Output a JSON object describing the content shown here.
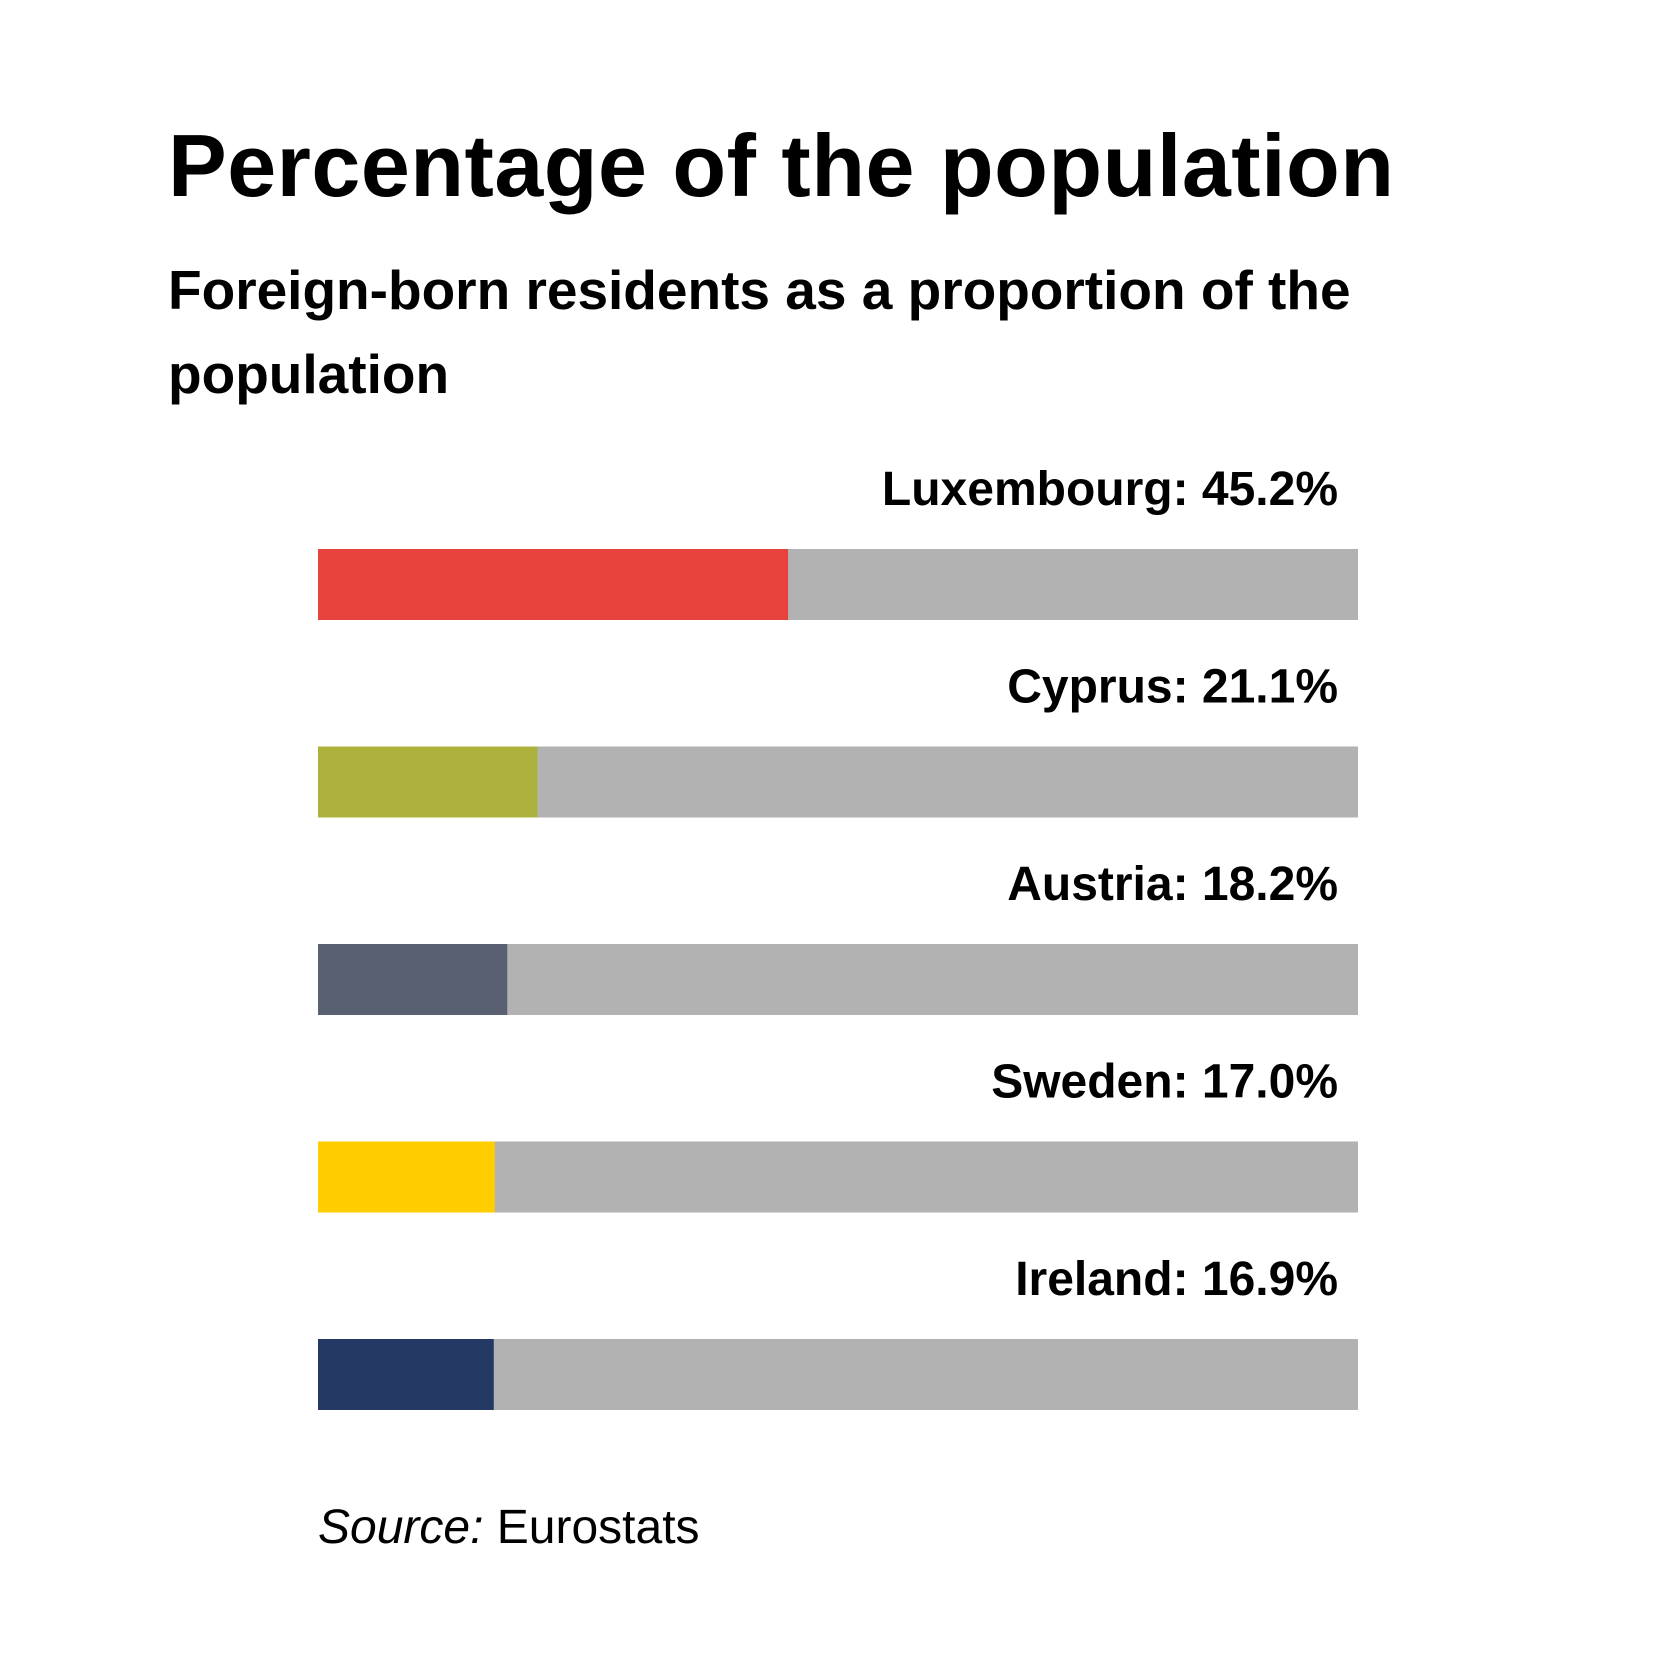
{
  "title": "Percentage of the population",
  "subtitle": "Foreign-born residents as a proportion of the population",
  "source": {
    "label": "Source:",
    "value": "Eurostats"
  },
  "track_color": "#b2b2b2",
  "chart_data": {
    "type": "bar",
    "orientation": "horizontal",
    "title": "Percentage of the population",
    "subtitle": "Foreign-born residents as a proportion of the population",
    "xlim": [
      0,
      100
    ],
    "categories": [
      "Luxembourg",
      "Cyprus",
      "Austria",
      "Sweden",
      "Ireland"
    ],
    "values": [
      45.2,
      21.1,
      18.2,
      17.0,
      16.9
    ],
    "value_labels": [
      "Luxembourg: 45.2%",
      "Cyprus: 21.1%",
      "Austria: 18.2%",
      "Sweden: 17.0%",
      "Ireland: 16.9%"
    ],
    "colors": [
      "#e8423c",
      "#adb23c",
      "#586072",
      "#ffcd00",
      "#233862"
    ]
  }
}
